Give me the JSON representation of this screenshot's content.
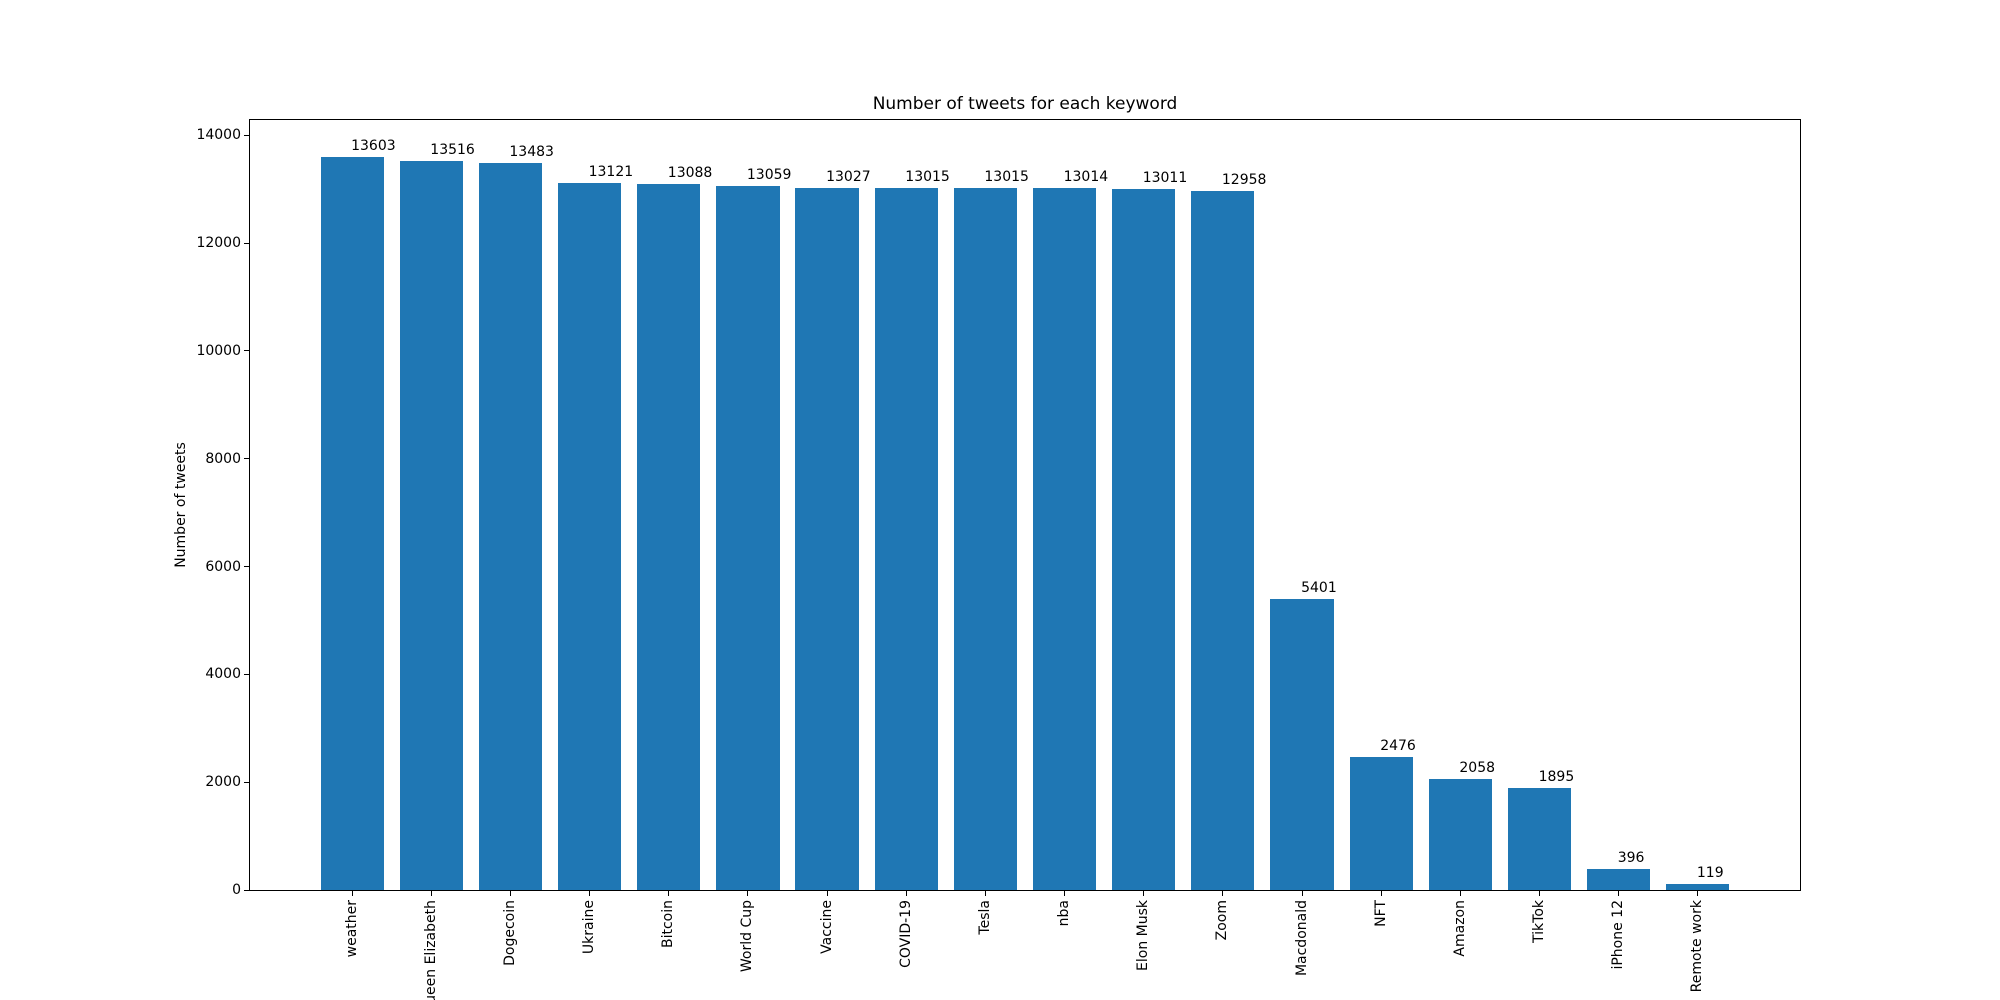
{
  "chart_data": {
    "type": "bar",
    "title": "Number of tweets for each keyword",
    "xlabel": "",
    "ylabel": "Number of tweets",
    "categories": [
      "weather",
      "Queen Elizabeth",
      "Dogecoin",
      "Ukraine",
      "Bitcoin",
      "World Cup",
      "Vaccine",
      "COVID-19",
      "Tesla",
      "nba",
      "Elon Musk",
      "Zoom",
      "Macdonald",
      "NFT",
      "Amazon",
      "TikTok",
      "iPhone 12",
      "Remote work"
    ],
    "values": [
      13603,
      13516,
      13483,
      13121,
      13088,
      13059,
      13027,
      13015,
      13015,
      13014,
      13011,
      12958,
      5401,
      2476,
      2058,
      1895,
      396,
      119
    ],
    "value_labels_shown": true,
    "yticks": [
      0,
      2000,
      4000,
      6000,
      8000,
      10000,
      12000,
      14000
    ],
    "ylim": [
      0,
      14283
    ],
    "xlim": [
      -1.29,
      18.29
    ],
    "bar_width_fraction": 0.8,
    "x_tick_rotation": 90,
    "grid": false,
    "legend": null,
    "bar_color": "#1f77b4"
  },
  "colors": {
    "bar": "#1f77b4",
    "text": "#000000",
    "background": "#ffffff",
    "spine": "#000000"
  }
}
